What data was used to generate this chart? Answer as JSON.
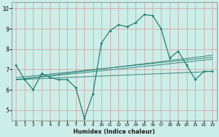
{
  "title": "",
  "xlabel": "Humidex (Indice chaleur)",
  "ylabel": "",
  "bg_color": "#cceee8",
  "grid_color": "#d4a0a0",
  "line_color": "#1a7a6e",
  "x_ticks": [
    0,
    1,
    2,
    3,
    4,
    5,
    6,
    7,
    8,
    9,
    10,
    11,
    12,
    13,
    14,
    15,
    16,
    17,
    18,
    19,
    20,
    21,
    22,
    23
  ],
  "y_ticks": [
    5,
    6,
    7,
    8,
    9,
    10
  ],
  "xlim": [
    -0.5,
    23.5
  ],
  "ylim": [
    4.5,
    10.3
  ],
  "main_line": {
    "x": [
      0,
      1,
      2,
      3,
      4,
      5,
      6,
      7,
      8,
      9,
      10,
      11,
      12,
      13,
      14,
      15,
      16,
      17,
      18,
      19,
      20,
      21,
      22,
      23
    ],
    "y": [
      7.2,
      6.5,
      6.0,
      6.8,
      6.6,
      6.5,
      6.5,
      6.1,
      4.6,
      5.8,
      8.3,
      8.9,
      9.2,
      9.1,
      9.3,
      9.7,
      9.65,
      9.0,
      7.55,
      7.9,
      7.2,
      6.5,
      6.9,
      6.9
    ]
  },
  "trend_lines": [
    {
      "x": [
        0,
        23
      ],
      "y": [
        6.5,
        6.9
      ]
    },
    {
      "x": [
        0,
        23
      ],
      "y": [
        6.5,
        7.5
      ]
    },
    {
      "x": [
        0,
        23
      ],
      "y": [
        6.5,
        7.7
      ]
    },
    {
      "x": [
        0,
        23
      ],
      "y": [
        6.6,
        7.6
      ]
    }
  ],
  "figsize": [
    3.2,
    2.0
  ],
  "dpi": 100
}
